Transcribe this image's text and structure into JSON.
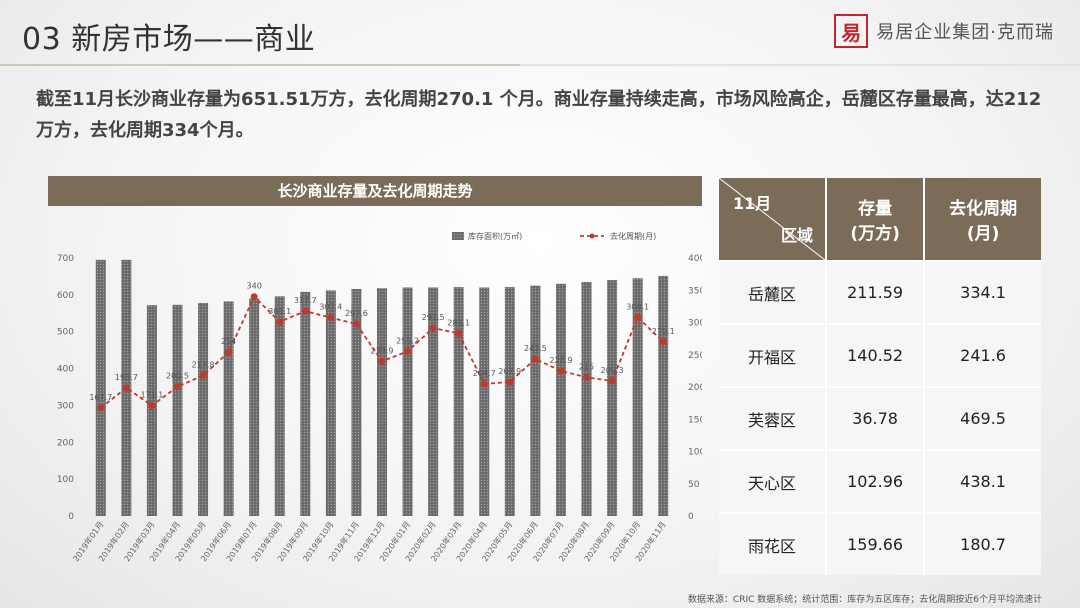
{
  "page": {
    "title": "03 新房市场——商业",
    "logo_text": "易居企业集团·克而瑞",
    "summary": "截至11月长沙商业存量为651.51万方，去化周期270.1 个月。商业存量持续走高，市场风险高企，岳麓区存量最高，达212万方，去化周期334个月。",
    "source": "数据来源：CRIC 数据系统；统计范围：库存为五区库存；去化周期按近6个月平均流速计"
  },
  "chart_data": {
    "type": "bar+line",
    "title": "长沙商业存量及去化周期走势",
    "categories": [
      "2019年01月",
      "2019年02月",
      "2019年03月",
      "2019年04月",
      "2019年05月",
      "2019年06月",
      "2019年07月",
      "2019年08月",
      "2019年09月",
      "2019年10月",
      "2019年11月",
      "2019年12月",
      "2020年01月",
      "2020年02月",
      "2020年03月",
      "2020年04月",
      "2020年05月",
      "2020年06月",
      "2020年07月",
      "2020年08月",
      "2020年09月",
      "2020年10月",
      "2020年11月"
    ],
    "series": [
      {
        "name": "库存面积(万㎡)",
        "type": "bar",
        "axis": "left",
        "color": "#6e6e6e",
        "values": [
          695,
          695,
          572,
          573,
          578,
          582,
          590,
          596,
          608,
          612,
          616,
          618,
          620,
          620,
          621,
          620,
          621,
          625,
          630,
          635,
          640,
          645,
          651.51
        ]
      },
      {
        "name": "去化周期(月)",
        "type": "line",
        "axis": "right",
        "color": "#c0392b",
        "values": [
          167.7,
          198.7,
          171.1,
          200.5,
          217.8,
          254,
          340,
          301.1,
          317.7,
          307.4,
          297.6,
          239.9,
          255.2,
          291.5,
          283.1,
          204.7,
          207.9,
          243.5,
          224.9,
          215,
          209.3,
          308.1,
          270.1
        ],
        "labels": [
          "167.7",
          "198.7",
          "171.1",
          "200.5",
          "217.8",
          "254",
          "340",
          "301.1",
          "317.7",
          "307.4",
          "297.6",
          "239.9",
          "255.2",
          "291.5",
          "283.1",
          "204.7",
          "207.9",
          "243.5",
          "224.9",
          "215",
          "209.3",
          "308.1",
          "270.1"
        ]
      }
    ],
    "ylim_left": [
      0,
      700
    ],
    "yticks_left": [
      "0",
      "100",
      "200",
      "300",
      "400",
      "500",
      "600",
      "700"
    ],
    "ylim_right": [
      0,
      400
    ],
    "yticks_right": [
      "0",
      "50",
      "100",
      "150",
      "200",
      "250",
      "300",
      "350",
      "400"
    ],
    "legend_position": "top-right",
    "grid": false
  },
  "table": {
    "header": {
      "corner_top": "11月",
      "corner_bottom": "区域",
      "col1": "存量\n(万方)",
      "col2": "去化周期\n(月)"
    },
    "rows": [
      {
        "district": "岳麓区",
        "stock": "211.59",
        "period": "334.1"
      },
      {
        "district": "开福区",
        "stock": "140.52",
        "period": "241.6"
      },
      {
        "district": "芙蓉区",
        "stock": "36.78",
        "period": "469.5"
      },
      {
        "district": "天心区",
        "stock": "102.96",
        "period": "438.1"
      },
      {
        "district": "雨花区",
        "stock": "159.66",
        "period": "180.7"
      }
    ]
  }
}
